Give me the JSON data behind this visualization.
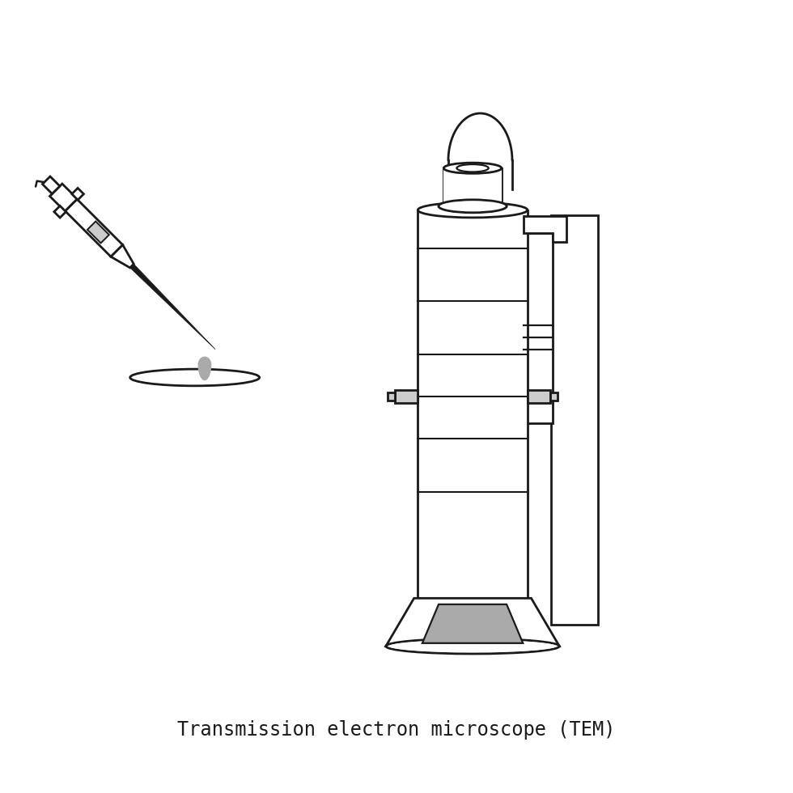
{
  "title": "Transmission electron microscope (TEM)",
  "background_color": "#ffffff",
  "line_color": "#1a1a1a",
  "gray_fill": "#aaaaaa",
  "light_gray": "#cccccc",
  "white_fill": "#ffffff",
  "line_width": 2.0,
  "title_fontsize": 17,
  "title_font": "monospace",
  "fig_width": 9.8,
  "fig_height": 9.8,
  "dpi": 100
}
